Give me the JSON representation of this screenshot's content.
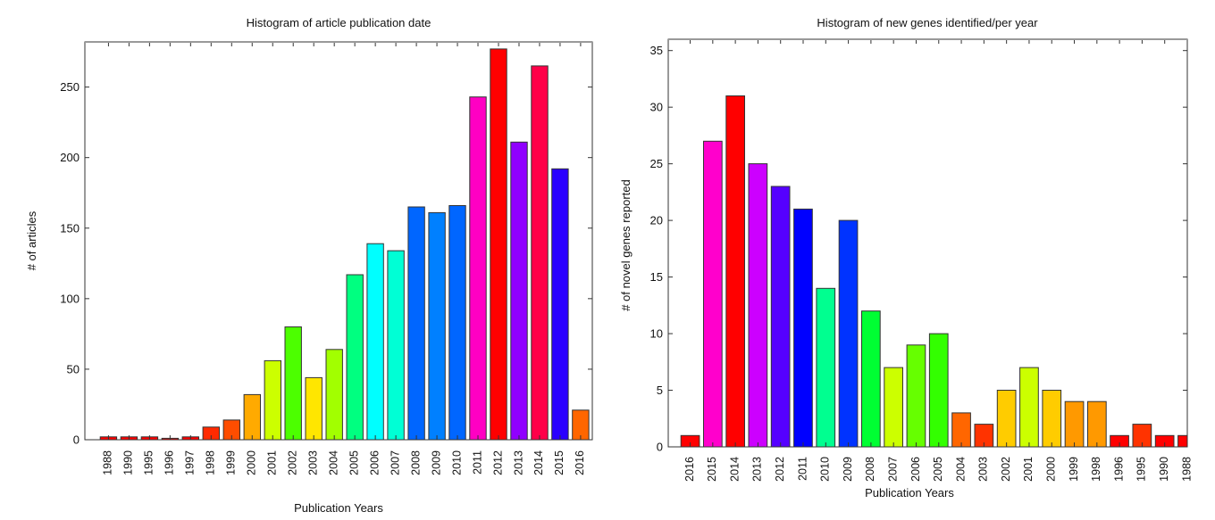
{
  "chart_data": [
    {
      "type": "bar",
      "title": "Histogram of article publication date",
      "xlabel": "Publication Years",
      "ylabel": "# of articles",
      "ylim": [
        0,
        282
      ],
      "yticks": [
        0,
        50,
        100,
        150,
        200,
        250
      ],
      "grid": false,
      "legend": "none",
      "categories": [
        "1988",
        "1990",
        "1995",
        "1996",
        "1997",
        "1998",
        "1999",
        "2000",
        "2001",
        "2002",
        "2003",
        "2004",
        "2005",
        "2006",
        "2007",
        "2008",
        "2009",
        "2010",
        "2011",
        "2012",
        "2013",
        "2014",
        "2015",
        "2016"
      ],
      "values": [
        2,
        2,
        2,
        1,
        2,
        9,
        14,
        32,
        56,
        80,
        44,
        64,
        117,
        139,
        134,
        165,
        161,
        166,
        243,
        277,
        211,
        265,
        192,
        21
      ],
      "colors": [
        "#ff0000",
        "#ff0000",
        "#ff0000",
        "#ff0000",
        "#ff0000",
        "#ff2a00",
        "#ff4d00",
        "#ffaa00",
        "#ccff00",
        "#4cff00",
        "#ffe600",
        "#a2ff00",
        "#00ff80",
        "#00ffff",
        "#00ffd5",
        "#0066ff",
        "#0080ff",
        "#0066ff",
        "#ff00c3",
        "#ff0000",
        "#9000ff",
        "#ff0048",
        "#2a00ff",
        "#ff6600"
      ]
    },
    {
      "type": "bar",
      "title": "Histogram of new genes identified/per year",
      "xlabel": "Publication Years",
      "ylabel": "# of novel genes reported",
      "ylim": [
        0,
        36
      ],
      "yticks": [
        0,
        5,
        10,
        15,
        20,
        25,
        30,
        35
      ],
      "grid": false,
      "legend": "none",
      "categories": [
        "2016",
        "2015",
        "2014",
        "2013",
        "2012",
        "2011",
        "2010",
        "2009",
        "2008",
        "2007",
        "2006",
        "2005",
        "2004",
        "2003",
        "2002",
        "2001",
        "2000",
        "1999",
        "1998",
        "1996",
        "1995",
        "1990",
        "1988"
      ],
      "values": [
        1,
        27,
        31,
        25,
        23,
        21,
        14,
        20,
        12,
        7,
        9,
        10,
        3,
        2,
        5,
        7,
        5,
        4,
        4,
        1,
        2,
        1,
        1
      ],
      "colors": [
        "#ff0000",
        "#ff00cc",
        "#ff0000",
        "#cc00ff",
        "#5500ff",
        "#0000ff",
        "#00ff90",
        "#0033ff",
        "#00ff33",
        "#ccff00",
        "#66ff00",
        "#33ff00",
        "#ff6600",
        "#ff3300",
        "#ffcc00",
        "#ccff00",
        "#ffcc00",
        "#ff9900",
        "#ff9900",
        "#ff0000",
        "#ff3300",
        "#ff0000",
        "#ff0000"
      ]
    }
  ]
}
